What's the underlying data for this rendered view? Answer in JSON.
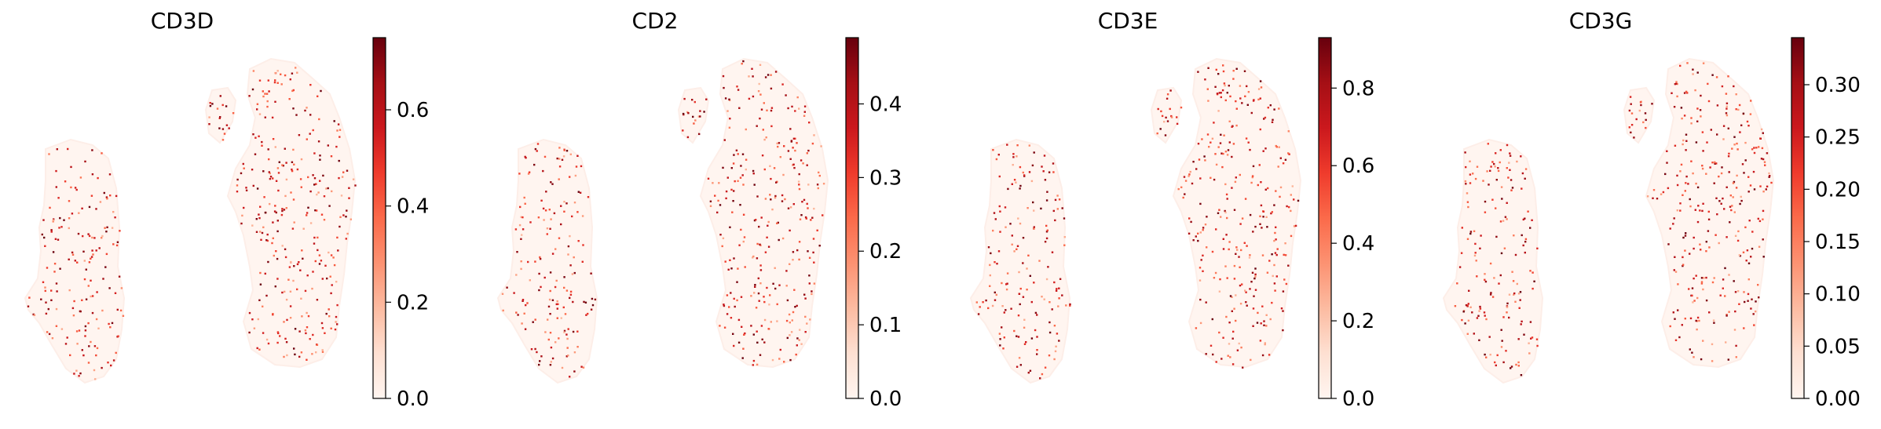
{
  "chart_data": [
    {
      "type": "scatter",
      "title": "CD3D",
      "colormap": "Reds",
      "colorbar": {
        "min": 0.0,
        "max": 0.75,
        "ticks": [
          "0.0",
          "0.2",
          "0.4",
          "0.6"
        ],
        "tick_values": [
          0.0,
          0.2,
          0.4,
          0.6
        ]
      },
      "axes_visible": false,
      "grid": false,
      "seed": 11
    },
    {
      "type": "scatter",
      "title": "CD2",
      "colormap": "Reds",
      "colorbar": {
        "min": 0.0,
        "max": 0.49,
        "ticks": [
          "0.0",
          "0.1",
          "0.2",
          "0.3",
          "0.4"
        ],
        "tick_values": [
          0.0,
          0.1,
          0.2,
          0.3,
          0.4
        ]
      },
      "axes_visible": false,
      "grid": false,
      "seed": 23
    },
    {
      "type": "scatter",
      "title": "CD3E",
      "colormap": "Reds",
      "colorbar": {
        "min": 0.0,
        "max": 0.93,
        "ticks": [
          "0.0",
          "0.2",
          "0.4",
          "0.6",
          "0.8"
        ],
        "tick_values": [
          0.0,
          0.2,
          0.4,
          0.6,
          0.8
        ]
      },
      "axes_visible": false,
      "grid": false,
      "seed": 37
    },
    {
      "type": "scatter",
      "title": "CD3G",
      "colormap": "Reds",
      "colorbar": {
        "min": 0.0,
        "max": 0.345,
        "ticks": [
          "0.00",
          "0.05",
          "0.10",
          "0.15",
          "0.20",
          "0.25",
          "0.30"
        ],
        "tick_values": [
          0.0,
          0.05,
          0.1,
          0.15,
          0.2,
          0.25,
          0.3
        ]
      },
      "axes_visible": false,
      "grid": false,
      "seed": 53
    }
  ],
  "colors": {
    "reds_low": "#fff5f0",
    "reds_high": "#67000d",
    "background": "#ffffff"
  }
}
